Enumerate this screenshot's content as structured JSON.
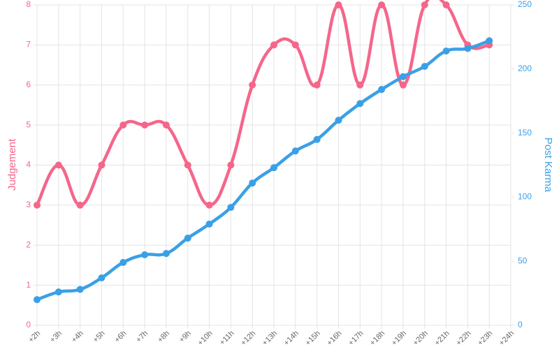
{
  "chart_data": {
    "type": "line",
    "categories": [
      "+2h",
      "+3h",
      "+4h",
      "+5h",
      "+6h",
      "+7h",
      "+8h",
      "+9h",
      "+10h",
      "+11h",
      "+12h",
      "+13h",
      "+14h",
      "+15h",
      "+16h",
      "+17h",
      "+18h",
      "+19h",
      "+20h",
      "+21h",
      "+22h",
      "+23h",
      "+24h"
    ],
    "series": [
      {
        "name": "Judgement",
        "color": "#f5668a",
        "values": [
          3,
          4,
          3,
          4,
          5,
          5,
          5,
          4,
          3,
          4,
          6,
          7,
          7,
          6,
          8,
          6,
          8,
          6,
          8,
          8,
          7,
          7,
          null
        ]
      },
      {
        "name": "Post Karma",
        "color": "#3aa0e6",
        "axis": "y2",
        "values": [
          20,
          26,
          28,
          37,
          49,
          55,
          56,
          68,
          79,
          92,
          111,
          123,
          136,
          145,
          160,
          173,
          184,
          194,
          202,
          214,
          216,
          222,
          null
        ]
      }
    ],
    "ylabel": "Judgement",
    "y2label": "Post Karma",
    "ylim": [
      0,
      8
    ],
    "yticks": [
      0,
      1,
      2,
      3,
      4,
      5,
      6,
      7,
      8
    ],
    "y2lim": [
      0,
      250
    ],
    "y2ticks": [
      0,
      50,
      100,
      150,
      200,
      250
    ],
    "grid": true
  }
}
